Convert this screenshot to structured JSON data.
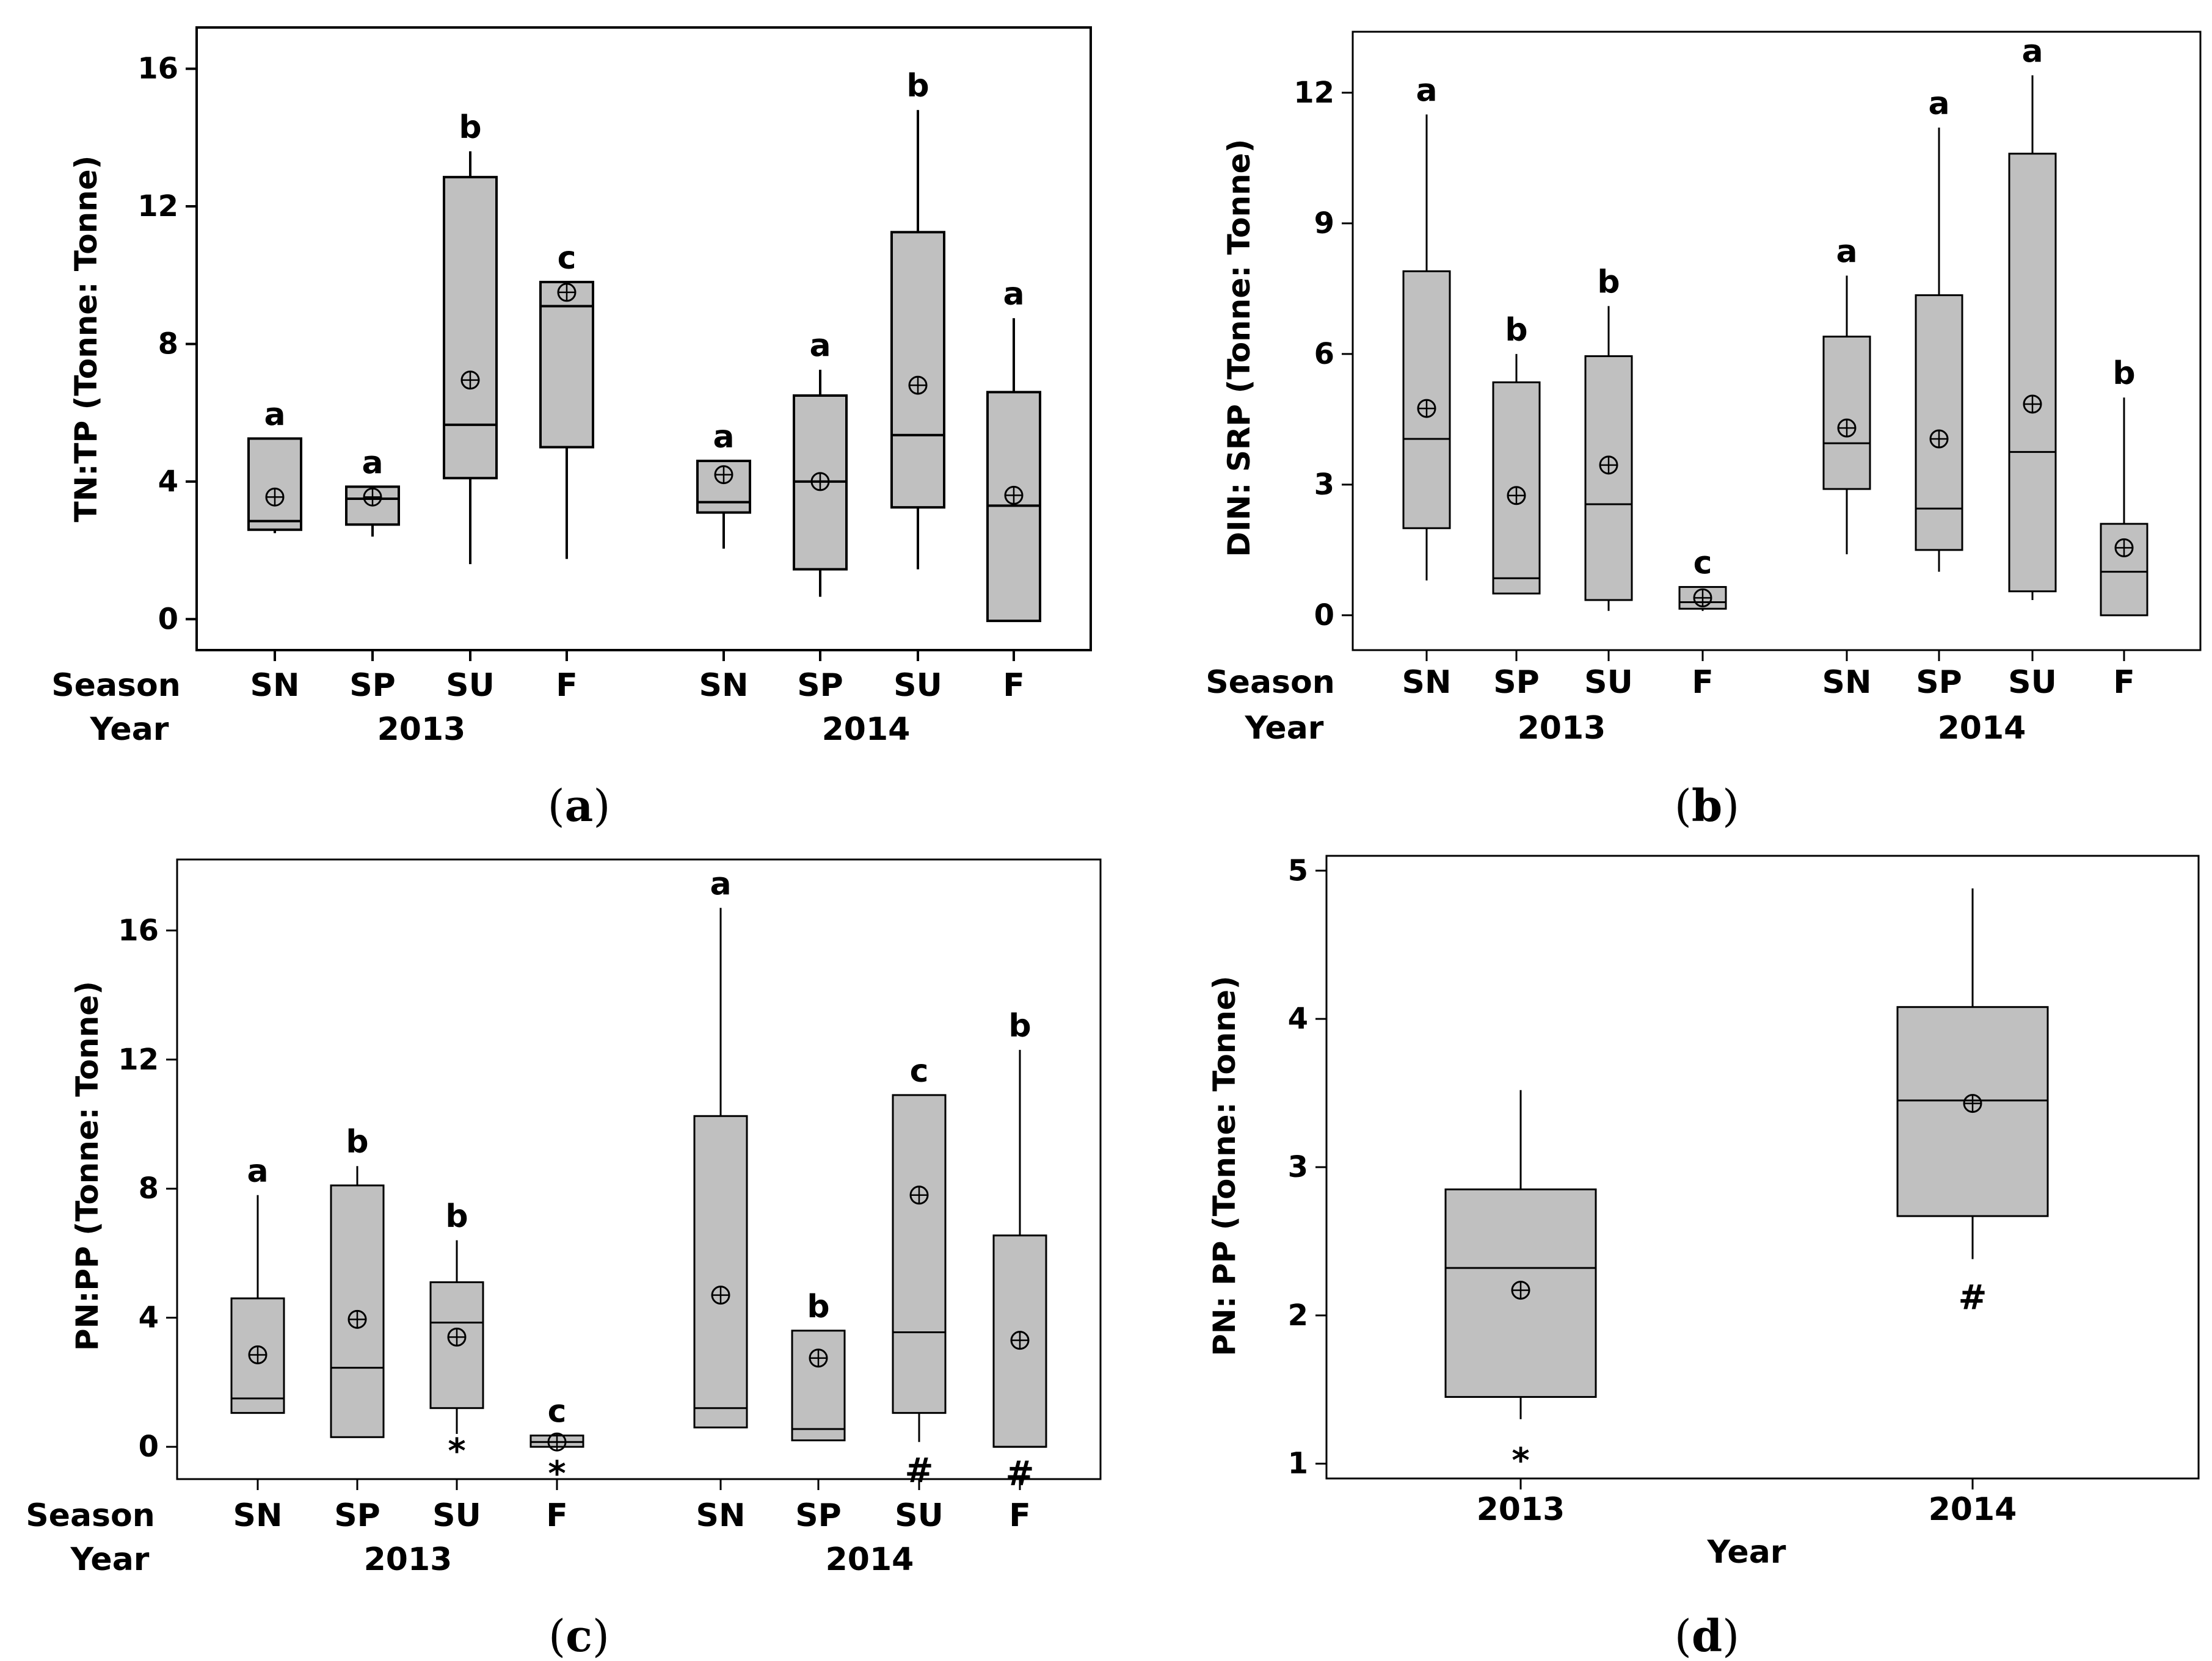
{
  "style": {
    "box_fill": "#c0c0c0",
    "stroke": "#000000",
    "background": "#ffffff"
  },
  "chart_data": [
    {
      "tag": "a",
      "type": "box",
      "ylabel": "TN:TP (Tonne: Tonne)",
      "ylim": [
        -0.9,
        17.2
      ],
      "yticks": [
        0,
        4,
        8,
        12,
        16
      ],
      "row_labels": {
        "season": "Season",
        "year": "Year"
      },
      "years": [
        "2013",
        "2014"
      ],
      "boxes": [
        {
          "season": "SN",
          "year": "2013",
          "min": 2.5,
          "q1": 2.6,
          "median": 2.85,
          "q3": 5.25,
          "max": 5.25,
          "mean": 3.55,
          "letter": "a"
        },
        {
          "season": "SP",
          "year": "2013",
          "min": 2.4,
          "q1": 2.75,
          "median": 3.5,
          "q3": 3.85,
          "max": 3.85,
          "mean": 3.55,
          "letter": "a"
        },
        {
          "season": "SU",
          "year": "2013",
          "min": 1.6,
          "q1": 4.1,
          "median": 5.65,
          "q3": 12.85,
          "max": 13.6,
          "mean": 6.95,
          "letter": "b"
        },
        {
          "season": "F",
          "year": "2013",
          "min": 1.75,
          "q1": 5.0,
          "median": 9.1,
          "q3": 9.8,
          "max": 9.8,
          "mean": 9.5,
          "letter": "c"
        },
        {
          "season": "SN",
          "year": "2014",
          "min": 2.05,
          "q1": 3.1,
          "median": 3.4,
          "q3": 4.6,
          "max": 4.6,
          "mean": 4.2,
          "letter": "a"
        },
        {
          "season": "SP",
          "year": "2014",
          "min": 0.65,
          "q1": 1.45,
          "median": 4.0,
          "q3": 6.5,
          "max": 7.25,
          "mean": 4.0,
          "letter": "a"
        },
        {
          "season": "SU",
          "year": "2014",
          "min": 1.45,
          "q1": 3.25,
          "median": 5.35,
          "q3": 11.25,
          "max": 14.8,
          "mean": 6.8,
          "letter": "b"
        },
        {
          "season": "F",
          "year": "2014",
          "min": -0.05,
          "q1": -0.05,
          "median": 3.3,
          "q3": 6.6,
          "max": 8.75,
          "mean": 3.6,
          "letter": "a"
        }
      ]
    },
    {
      "tag": "b",
      "type": "box",
      "ylabel": "DIN: SRP (Tonne: Tonne)",
      "ylim": [
        -0.8,
        13.4
      ],
      "yticks": [
        0,
        3,
        6,
        9,
        12
      ],
      "row_labels": {
        "season": "Season",
        "year": "Year"
      },
      "years": [
        "2013",
        "2014"
      ],
      "boxes": [
        {
          "season": "SN",
          "year": "2013",
          "min": 0.8,
          "q1": 2.0,
          "median": 4.05,
          "q3": 7.9,
          "max": 11.5,
          "mean": 4.75,
          "letter": "a"
        },
        {
          "season": "SP",
          "year": "2013",
          "min": 0.5,
          "q1": 0.5,
          "median": 0.85,
          "q3": 5.35,
          "max": 6.0,
          "mean": 2.75,
          "letter": "b"
        },
        {
          "season": "SU",
          "year": "2013",
          "min": 0.1,
          "q1": 0.35,
          "median": 2.55,
          "q3": 5.95,
          "max": 7.1,
          "mean": 3.45,
          "letter": "b"
        },
        {
          "season": "F",
          "year": "2013",
          "min": 0.1,
          "q1": 0.15,
          "median": 0.3,
          "q3": 0.65,
          "max": 0.65,
          "mean": 0.4,
          "letter": "c"
        },
        {
          "season": "SN",
          "year": "2014",
          "min": 1.4,
          "q1": 2.9,
          "median": 3.95,
          "q3": 6.4,
          "max": 7.8,
          "mean": 4.3,
          "letter": "a"
        },
        {
          "season": "SP",
          "year": "2014",
          "min": 1.0,
          "q1": 1.5,
          "median": 2.45,
          "q3": 7.35,
          "max": 11.2,
          "mean": 4.05,
          "letter": "a"
        },
        {
          "season": "SU",
          "year": "2014",
          "min": 0.35,
          "q1": 0.55,
          "median": 3.75,
          "q3": 10.6,
          "max": 12.4,
          "mean": 4.85,
          "letter": "a"
        },
        {
          "season": "F",
          "year": "2014",
          "min": 0.0,
          "q1": 0.0,
          "median": 1.0,
          "q3": 2.1,
          "max": 5.0,
          "mean": 1.55,
          "letter": "b"
        }
      ]
    },
    {
      "tag": "c",
      "type": "box",
      "ylabel": "PN:PP (Tonne: Tonne)",
      "ylim": [
        -1.0,
        18.2
      ],
      "yticks": [
        0,
        4,
        8,
        12,
        16
      ],
      "row_labels": {
        "season": "Season",
        "year": "Year"
      },
      "years": [
        "2013",
        "2014"
      ],
      "boxes": [
        {
          "season": "SN",
          "year": "2013",
          "min": 1.05,
          "q1": 1.05,
          "median": 1.5,
          "q3": 4.6,
          "max": 7.8,
          "mean": 2.85,
          "letter": "a"
        },
        {
          "season": "SP",
          "year": "2013",
          "min": 0.3,
          "q1": 0.3,
          "median": 2.45,
          "q3": 8.1,
          "max": 8.7,
          "mean": 3.95,
          "letter": "b"
        },
        {
          "season": "SU",
          "year": "2013",
          "min": 0.4,
          "q1": 1.2,
          "median": 3.85,
          "q3": 5.1,
          "max": 6.4,
          "mean": 3.4,
          "letter": "b",
          "outlier_symbol": "*",
          "outlier_value": 0.0
        },
        {
          "season": "F",
          "year": "2013",
          "min": 0.0,
          "q1": 0.0,
          "median": 0.15,
          "q3": 0.35,
          "max": 0.35,
          "mean": 0.15,
          "letter": "c",
          "outlier_symbol": "*",
          "outlier_value": -0.7
        },
        {
          "season": "SN",
          "year": "2014",
          "min": 0.6,
          "q1": 0.6,
          "median": 1.2,
          "q3": 10.25,
          "max": 16.7,
          "mean": 4.7,
          "letter": "a"
        },
        {
          "season": "SP",
          "year": "2014",
          "min": 0.2,
          "q1": 0.2,
          "median": 0.55,
          "q3": 3.6,
          "max": 3.6,
          "mean": 2.75,
          "letter": "b"
        },
        {
          "season": "SU",
          "year": "2014",
          "min": 0.15,
          "q1": 1.05,
          "median": 3.55,
          "q3": 10.9,
          "max": 10.9,
          "mean": 7.8,
          "letter": "c",
          "outlier_symbol": "#",
          "outlier_value": -0.6
        },
        {
          "season": "F",
          "year": "2014",
          "min": 0.0,
          "q1": 0.0,
          "median": 0.0,
          "q3": 6.55,
          "max": 12.3,
          "mean": 3.3,
          "letter": "b",
          "outlier_symbol": "#",
          "outlier_value": -0.7
        }
      ]
    },
    {
      "tag": "d",
      "type": "box",
      "ylabel": "PN: PP (Tonne: Tonne)",
      "xlabel": "Year",
      "ylim": [
        0.9,
        5.1
      ],
      "yticks": [
        1,
        2,
        3,
        4,
        5
      ],
      "boxes": [
        {
          "season": "2013",
          "min": 1.3,
          "q1": 1.45,
          "median": 2.32,
          "q3": 2.85,
          "max": 3.52,
          "mean": 2.17,
          "outlier_symbol": "*",
          "outlier_value": 1.05
        },
        {
          "season": "2014",
          "min": 2.38,
          "q1": 2.67,
          "median": 3.45,
          "q3": 4.08,
          "max": 4.88,
          "mean": 3.43,
          "outlier_symbol": "#",
          "outlier_value": 2.15
        }
      ]
    }
  ]
}
